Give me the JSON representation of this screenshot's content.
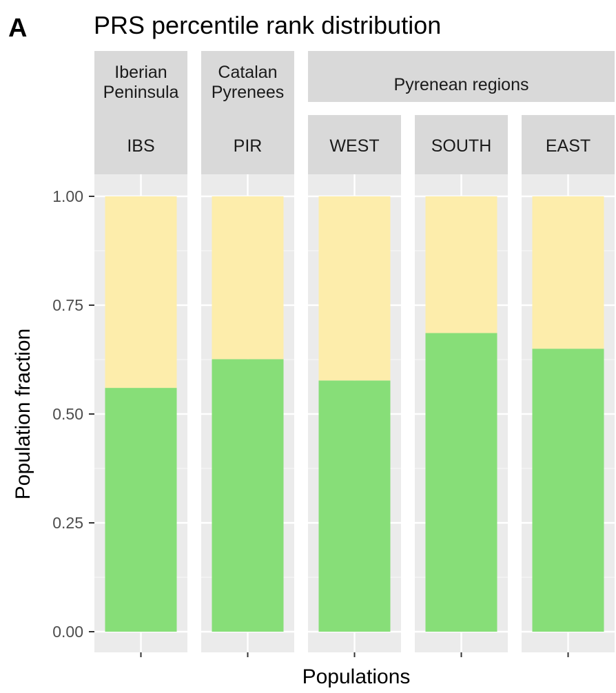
{
  "panel_letter": "A",
  "chart_data": {
    "type": "bar",
    "stacked": true,
    "title": "PRS percentile rank distribution",
    "xlabel": "Populations",
    "ylabel": "Population fraction",
    "ylim": [
      0,
      1
    ],
    "yticks": [
      "0.00",
      "0.25",
      "0.50",
      "0.75",
      "1.00"
    ],
    "grid": true,
    "legend": "none",
    "facet_groups": [
      {
        "label": [
          "Iberian",
          "Peninsula"
        ],
        "facets": [
          "IBS"
        ]
      },
      {
        "label": [
          "Catalan",
          "Pyrenees"
        ],
        "facets": [
          "PIR"
        ]
      },
      {
        "label": [
          "Pyrenean regions"
        ],
        "facets": [
          "WEST",
          "SOUTH",
          "EAST"
        ]
      }
    ],
    "categories": [
      "IBS",
      "PIR",
      "WEST",
      "SOUTH",
      "EAST"
    ],
    "series": [
      {
        "values": [
          0.56,
          0.626,
          0.577,
          0.686,
          0.65
        ],
        "color": "#87de78"
      },
      {
        "values": [
          0.44,
          0.374,
          0.423,
          0.314,
          0.35
        ],
        "color": "#fdedab"
      }
    ]
  }
}
